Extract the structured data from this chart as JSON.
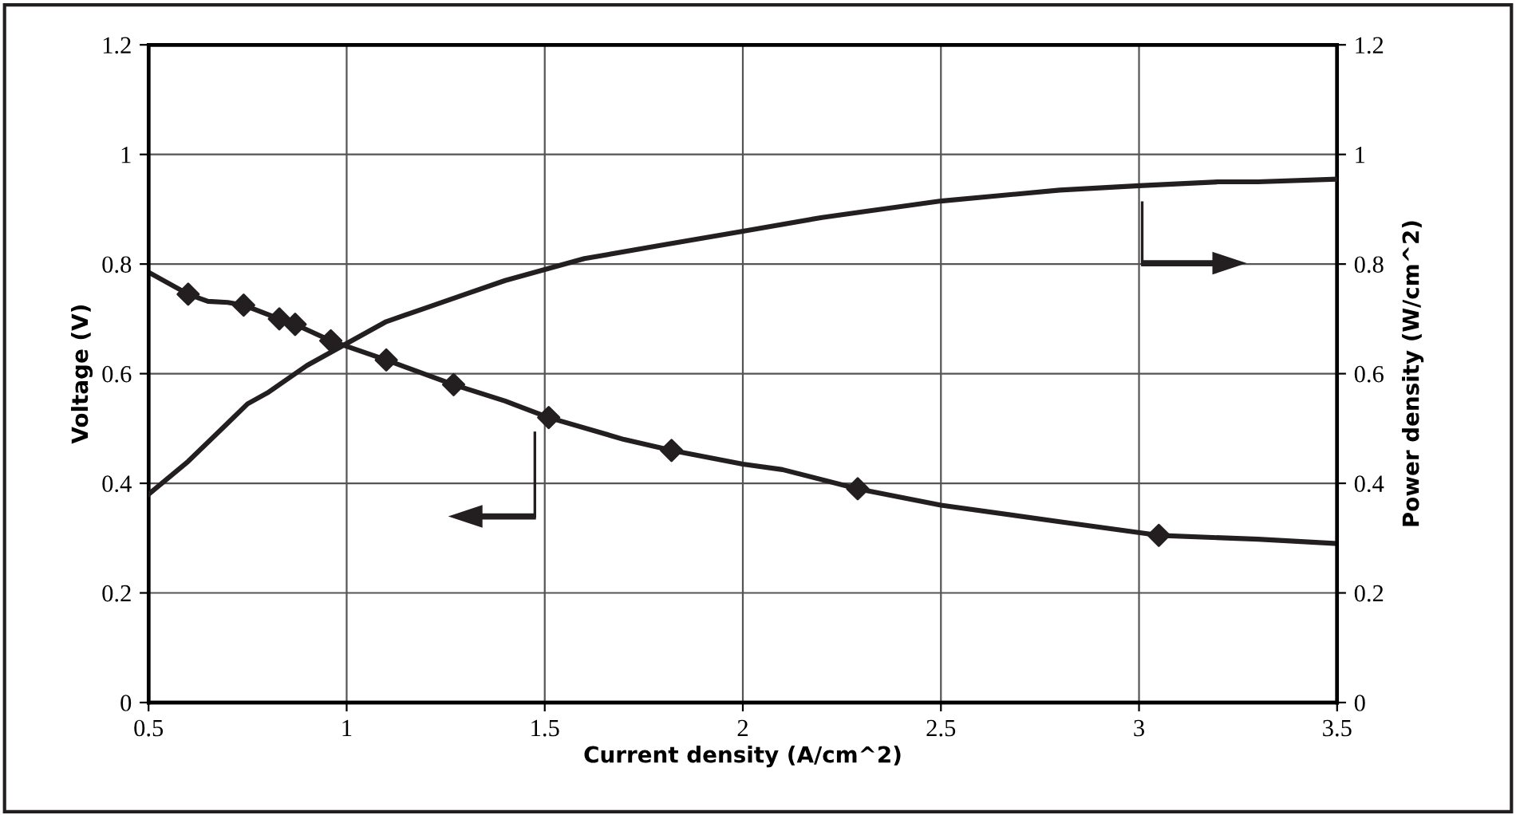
{
  "chart_data": {
    "type": "line",
    "xlabel": "Current density (A/cm^2)",
    "ylabel": "Voltage (V)",
    "y2label": "Power density (W/cm^2)",
    "xlim": [
      0.5,
      3.5
    ],
    "xticks": [
      0.5,
      1,
      1.5,
      2,
      2.5,
      3,
      3.5
    ],
    "ylim": [
      0,
      1.2
    ],
    "yticks": [
      0,
      0.2,
      0.4,
      0.6,
      0.8,
      1,
      1.2
    ],
    "y2lim": [
      0,
      1.2
    ],
    "y2ticks": [
      0,
      0.2,
      0.4,
      0.6,
      0.8,
      1,
      1.2
    ],
    "grid": true,
    "marker": "none",
    "line_style": "solid",
    "series": [
      {
        "color": "#231f20",
        "x": [
          0.5,
          0.6,
          0.65,
          0.7,
          0.74,
          0.83,
          0.87,
          0.96,
          1.1,
          1.27,
          1.4,
          1.51,
          1.7,
          1.82,
          2.0,
          2.1,
          2.29,
          2.5,
          2.8,
          3.05,
          3.3,
          3.5
        ],
        "values": [
          0.785,
          0.745,
          0.732,
          0.73,
          0.725,
          0.7,
          0.69,
          0.66,
          0.625,
          0.58,
          0.55,
          0.52,
          0.48,
          0.46,
          0.435,
          0.425,
          0.39,
          0.36,
          0.33,
          0.305,
          0.298,
          0.29
        ]
      },
      {
        "type": "scatter",
        "marker": "diamond",
        "color": "#231f20",
        "x": [
          0.6,
          0.74,
          0.83,
          0.87,
          0.96,
          1.1,
          1.27,
          1.51,
          1.82,
          2.29,
          3.05
        ],
        "values": [
          0.745,
          0.725,
          0.7,
          0.69,
          0.66,
          0.625,
          0.58,
          0.52,
          0.46,
          0.39,
          0.305
        ]
      },
      {
        "axis": "y2",
        "color": "#231f20",
        "x": [
          0.5,
          0.6,
          0.7,
          0.75,
          0.8,
          0.9,
          1.0,
          1.1,
          1.2,
          1.3,
          1.4,
          1.5,
          1.6,
          1.8,
          2.0,
          2.2,
          2.3,
          2.5,
          2.8,
          3.0,
          3.2,
          3.3,
          3.5
        ],
        "values": [
          0.38,
          0.44,
          0.51,
          0.545,
          0.565,
          0.615,
          0.655,
          0.695,
          0.72,
          0.745,
          0.77,
          0.79,
          0.81,
          0.835,
          0.86,
          0.885,
          0.895,
          0.915,
          0.935,
          0.943,
          0.95,
          0.95,
          0.955
        ]
      }
    ]
  }
}
